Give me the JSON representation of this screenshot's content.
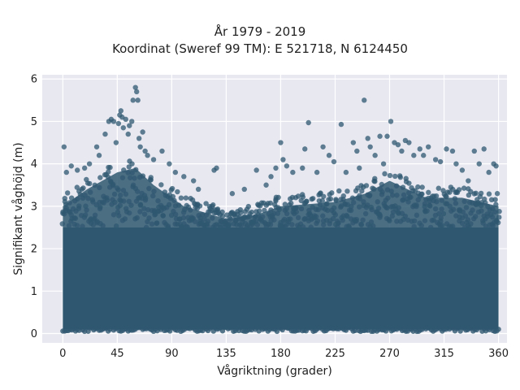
{
  "chart_data": {
    "type": "scatter",
    "title": "År 1979 - 2019",
    "subtitle": "Koordinat (Sweref 99 TM): E 521718, N 6124450",
    "xlabel": "Vågriktning (grader)",
    "ylabel": "Signifikant våghöjd (m)",
    "xlim": [
      -17,
      367
    ],
    "ylim": [
      -0.22,
      6.1
    ],
    "xticks": [
      0,
      45,
      90,
      135,
      180,
      225,
      270,
      315,
      360
    ],
    "yticks": [
      0,
      1,
      2,
      3,
      4,
      5,
      6
    ],
    "grid": true,
    "point_color": "#2f5870",
    "background_color": "#e8e8f1",
    "dense_band": {
      "x_range": [
        0,
        360
      ],
      "y_range": [
        0.1,
        2.5
      ],
      "upper_envelope": [
        [
          0,
          3.0
        ],
        [
          20,
          3.4
        ],
        [
          45,
          3.8
        ],
        [
          60,
          3.9
        ],
        [
          75,
          3.5
        ],
        [
          100,
          3.0
        ],
        [
          135,
          2.7
        ],
        [
          160,
          2.8
        ],
        [
          180,
          3.0
        ],
        [
          225,
          3.1
        ],
        [
          250,
          3.3
        ],
        [
          270,
          3.6
        ],
        [
          300,
          3.2
        ],
        [
          330,
          3.2
        ],
        [
          360,
          3.0
        ]
      ]
    },
    "outliers": [
      {
        "x": 1,
        "y": 4.4
      },
      {
        "x": 3,
        "y": 3.8
      },
      {
        "x": 7,
        "y": 3.95
      },
      {
        "x": 12,
        "y": 3.85
      },
      {
        "x": 18,
        "y": 3.9
      },
      {
        "x": 22,
        "y": 4.0
      },
      {
        "x": 28,
        "y": 4.4
      },
      {
        "x": 30,
        "y": 4.2
      },
      {
        "x": 35,
        "y": 4.7
      },
      {
        "x": 38,
        "y": 5.0
      },
      {
        "x": 40,
        "y": 5.05
      },
      {
        "x": 42,
        "y": 5.0
      },
      {
        "x": 44,
        "y": 4.5
      },
      {
        "x": 46,
        "y": 4.95
      },
      {
        "x": 47,
        "y": 5.15
      },
      {
        "x": 48,
        "y": 5.25
      },
      {
        "x": 49,
        "y": 5.1
      },
      {
        "x": 50,
        "y": 4.85
      },
      {
        "x": 52,
        "y": 5.05
      },
      {
        "x": 54,
        "y": 4.7
      },
      {
        "x": 55,
        "y": 4.9
      },
      {
        "x": 57,
        "y": 5.0
      },
      {
        "x": 58,
        "y": 5.5
      },
      {
        "x": 60,
        "y": 5.8
      },
      {
        "x": 61,
        "y": 5.7
      },
      {
        "x": 62,
        "y": 5.5
      },
      {
        "x": 63,
        "y": 4.6
      },
      {
        "x": 64,
        "y": 4.4
      },
      {
        "x": 66,
        "y": 4.75
      },
      {
        "x": 68,
        "y": 4.3
      },
      {
        "x": 70,
        "y": 4.2
      },
      {
        "x": 75,
        "y": 4.1
      },
      {
        "x": 82,
        "y": 4.3
      },
      {
        "x": 88,
        "y": 4.0
      },
      {
        "x": 93,
        "y": 3.8
      },
      {
        "x": 100,
        "y": 3.7
      },
      {
        "x": 108,
        "y": 3.6
      },
      {
        "x": 112,
        "y": 3.4
      },
      {
        "x": 125,
        "y": 3.85
      },
      {
        "x": 127,
        "y": 3.9
      },
      {
        "x": 140,
        "y": 3.3
      },
      {
        "x": 150,
        "y": 3.4
      },
      {
        "x": 160,
        "y": 3.85
      },
      {
        "x": 168,
        "y": 3.5
      },
      {
        "x": 172,
        "y": 3.7
      },
      {
        "x": 176,
        "y": 3.9
      },
      {
        "x": 180,
        "y": 4.5
      },
      {
        "x": 182,
        "y": 4.1
      },
      {
        "x": 185,
        "y": 3.95
      },
      {
        "x": 190,
        "y": 3.8
      },
      {
        "x": 198,
        "y": 3.9
      },
      {
        "x": 200,
        "y": 4.35
      },
      {
        "x": 203,
        "y": 4.97
      },
      {
        "x": 210,
        "y": 3.8
      },
      {
        "x": 215,
        "y": 4.4
      },
      {
        "x": 220,
        "y": 4.2
      },
      {
        "x": 224,
        "y": 4.05
      },
      {
        "x": 230,
        "y": 4.93
      },
      {
        "x": 234,
        "y": 3.8
      },
      {
        "x": 240,
        "y": 4.5
      },
      {
        "x": 243,
        "y": 4.3
      },
      {
        "x": 245,
        "y": 3.9
      },
      {
        "x": 249,
        "y": 5.5
      },
      {
        "x": 252,
        "y": 4.6
      },
      {
        "x": 254,
        "y": 4.4
      },
      {
        "x": 258,
        "y": 4.2
      },
      {
        "x": 262,
        "y": 4.65
      },
      {
        "x": 265,
        "y": 4.0
      },
      {
        "x": 268,
        "y": 4.65
      },
      {
        "x": 271,
        "y": 5.0
      },
      {
        "x": 274,
        "y": 4.5
      },
      {
        "x": 277,
        "y": 4.45
      },
      {
        "x": 280,
        "y": 4.3
      },
      {
        "x": 283,
        "y": 4.55
      },
      {
        "x": 286,
        "y": 4.5
      },
      {
        "x": 290,
        "y": 4.2
      },
      {
        "x": 295,
        "y": 4.35
      },
      {
        "x": 298,
        "y": 4.2
      },
      {
        "x": 302,
        "y": 4.4
      },
      {
        "x": 308,
        "y": 4.1
      },
      {
        "x": 312,
        "y": 4.05
      },
      {
        "x": 317,
        "y": 4.35
      },
      {
        "x": 322,
        "y": 4.3
      },
      {
        "x": 325,
        "y": 4.0
      },
      {
        "x": 330,
        "y": 3.85
      },
      {
        "x": 335,
        "y": 3.6
      },
      {
        "x": 340,
        "y": 4.3
      },
      {
        "x": 344,
        "y": 4.0
      },
      {
        "x": 348,
        "y": 4.35
      },
      {
        "x": 352,
        "y": 3.8
      },
      {
        "x": 356,
        "y": 4.0
      },
      {
        "x": 358,
        "y": 3.95
      },
      {
        "x": 359,
        "y": 3.3
      }
    ]
  }
}
